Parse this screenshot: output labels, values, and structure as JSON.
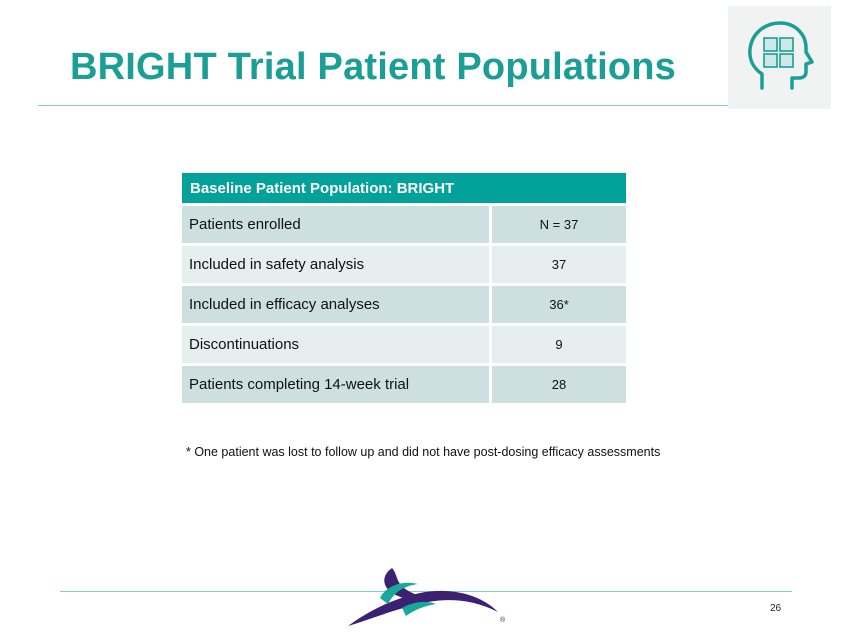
{
  "slide": {
    "title": "BRIGHT Trial Patient Populations",
    "page_number": "26",
    "footnote": "* One patient was lost to follow up and did not have post-dosing efficacy assessments",
    "logo_registered_mark": "®"
  },
  "table": {
    "header": "Baseline Patient Population: BRIGHT",
    "rows": [
      {
        "label": "Patients enrolled",
        "value": "N = 37"
      },
      {
        "label": "Included in safety analysis",
        "value": "37"
      },
      {
        "label": "Included in efficacy analyses",
        "value": "36*"
      },
      {
        "label": "Discontinuations",
        "value": "9"
      },
      {
        "label": "Patients completing 14-week trial",
        "value": "28"
      }
    ]
  },
  "colors": {
    "accent": "#1a9e96",
    "header_bg": "#02a199",
    "row_dark": "#cde0df",
    "row_light": "#e6efee",
    "logo_purple": "#3c2173"
  },
  "icons": {
    "top_right": "head-puzzle-icon",
    "logo": "company-swoosh-logo"
  }
}
